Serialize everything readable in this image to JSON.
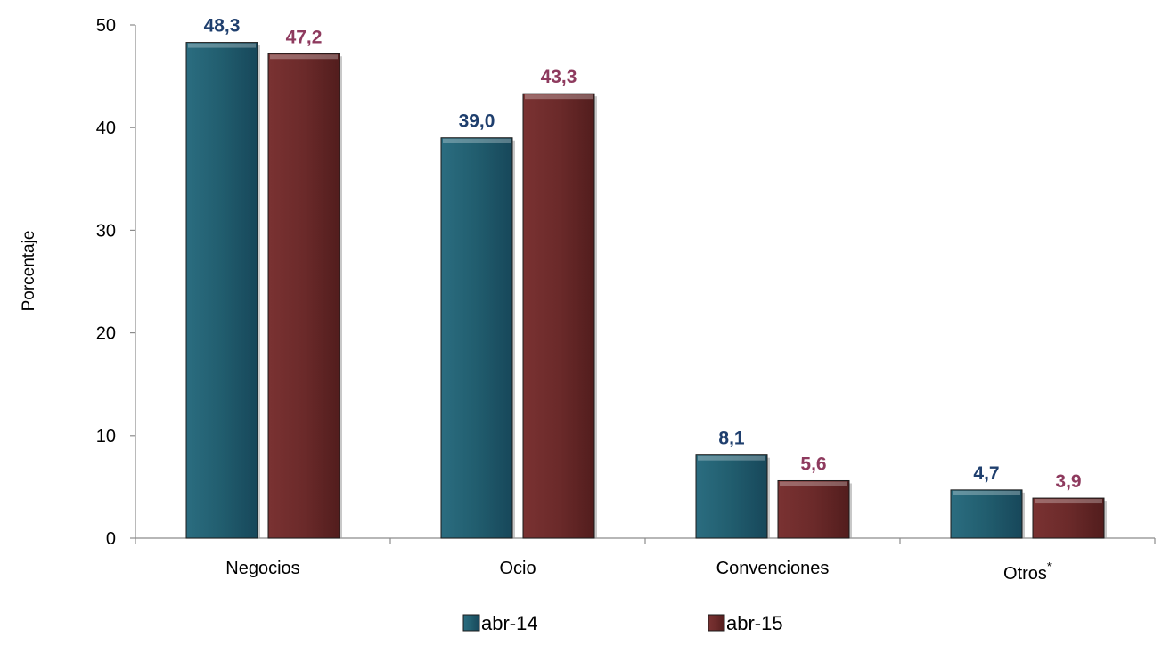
{
  "chart_data": {
    "type": "bar",
    "xlabel": "",
    "ylabel": "Porcentaje",
    "ylim": [
      0,
      50
    ],
    "yticks": [
      "0",
      "10",
      "20",
      "30",
      "40",
      "50"
    ],
    "categories": [
      {
        "label": "Negocios",
        "superscript": ""
      },
      {
        "label": "Ocio",
        "superscript": ""
      },
      {
        "label": "Convenciones",
        "superscript": ""
      },
      {
        "label": "Otros",
        "superscript": "*"
      }
    ],
    "series": [
      {
        "name": "abr-14",
        "values": [
          48.3,
          39.0,
          8.1,
          4.7
        ],
        "value_labels": [
          "48,3",
          "39,0",
          "8,1",
          "4,7"
        ],
        "color": "#215d6e",
        "label_color": "#1f3f6e"
      },
      {
        "name": "abr-15",
        "values": [
          47.2,
          43.3,
          5.6,
          3.9
        ],
        "value_labels": [
          "47,2",
          "43,3",
          "5,6",
          "3,9"
        ],
        "color": "#6b2a2a",
        "label_color": "#8e3a5e"
      }
    ],
    "grid": false,
    "legend": "bottom"
  }
}
